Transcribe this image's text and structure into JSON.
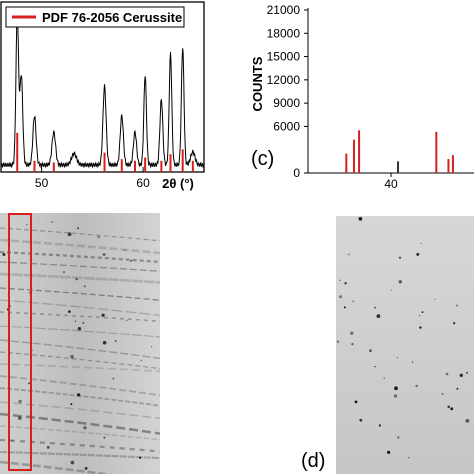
{
  "chart_data": [
    {
      "type": "line",
      "panel": "left",
      "xlabel": "2θ (°)",
      "xlim": [
        46,
        66
      ],
      "x_ticks": [
        50,
        60
      ],
      "x_tick_labels": [
        "50",
        "60"
      ],
      "legend": [
        {
          "name": "PDF 76-2056 Cerussite",
          "color": "#d62020"
        }
      ],
      "series": [
        {
          "name": "measured",
          "color": "#000000",
          "peaks": [
            {
              "x": 47.6,
              "h": 0.92,
              "w": 0.18
            },
            {
              "x": 48.0,
              "h": 0.55,
              "w": 0.2
            },
            {
              "x": 49.3,
              "h": 0.3,
              "w": 0.22
            },
            {
              "x": 51.2,
              "h": 0.2,
              "w": 0.25
            },
            {
              "x": 53.2,
              "h": 0.07,
              "w": 0.35
            },
            {
              "x": 56.2,
              "h": 0.48,
              "w": 0.22
            },
            {
              "x": 57.9,
              "h": 0.3,
              "w": 0.22
            },
            {
              "x": 59.2,
              "h": 0.2,
              "w": 0.22
            },
            {
              "x": 60.2,
              "h": 0.55,
              "w": 0.18
            },
            {
              "x": 61.8,
              "h": 0.4,
              "w": 0.2
            },
            {
              "x": 62.7,
              "h": 0.68,
              "w": 0.18
            },
            {
              "x": 63.9,
              "h": 0.72,
              "w": 0.18
            },
            {
              "x": 64.9,
              "h": 0.08,
              "w": 0.3
            }
          ]
        }
      ],
      "reference_lines": [
        {
          "x": 47.6,
          "h": 0.22
        },
        {
          "x": 49.3,
          "h": 0.05
        },
        {
          "x": 51.2,
          "h": 0.04
        },
        {
          "x": 56.2,
          "h": 0.1
        },
        {
          "x": 57.9,
          "h": 0.06
        },
        {
          "x": 59.2,
          "h": 0.05
        },
        {
          "x": 60.2,
          "h": 0.07
        },
        {
          "x": 61.8,
          "h": 0.05
        },
        {
          "x": 62.7,
          "h": 0.09
        },
        {
          "x": 63.9,
          "h": 0.12
        },
        {
          "x": 64.9,
          "h": 0.05
        }
      ]
    },
    {
      "type": "bar",
      "panel": "c",
      "panel_label": "(c)",
      "ylabel": "COUNTS",
      "ylim": [
        0,
        21000
      ],
      "y_ticks": [
        0,
        6000,
        9000,
        12000,
        15000,
        18000,
        21000
      ],
      "y_tick_labels": [
        "0",
        "6000",
        "9000",
        "12000",
        "15000",
        "18000",
        "21000"
      ],
      "xlim": [
        27,
        53
      ],
      "x_ticks": [
        40
      ],
      "x_tick_labels": [
        "40"
      ],
      "bars": [
        {
          "x": 33.0,
          "value": 2500,
          "color": "#d62020"
        },
        {
          "x": 34.2,
          "value": 4300,
          "color": "#d62020"
        },
        {
          "x": 35.0,
          "value": 5500,
          "color": "#d62020"
        },
        {
          "x": 41.1,
          "value": 1500,
          "color": "#333333"
        },
        {
          "x": 47.1,
          "value": 5300,
          "color": "#d62020"
        },
        {
          "x": 49.0,
          "value": 1800,
          "color": "#d62020"
        },
        {
          "x": 49.7,
          "value": 2300,
          "color": "#d62020"
        }
      ]
    }
  ],
  "images": {
    "left_pattern": {
      "highlight_color": "#d62020"
    },
    "right_pattern": {
      "panel_label": "(d)"
    }
  }
}
